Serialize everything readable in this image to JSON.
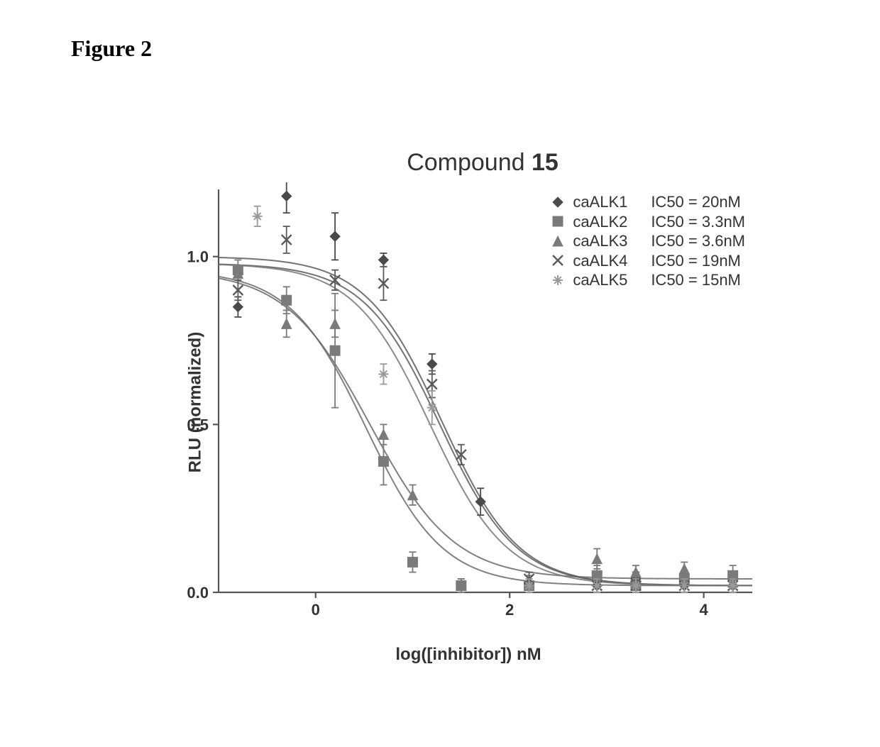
{
  "figure_label": "Figure 2",
  "chart": {
    "type": "scatter-with-curves",
    "title_prefix": "Compound ",
    "title_number": "15",
    "xlabel": "log([inhibitor]) nM",
    "ylabel": "RLU (normalized)",
    "xlim": [
      -1.0,
      4.5
    ],
    "ylim": [
      0.0,
      1.2
    ],
    "xticks": [
      0,
      2,
      4
    ],
    "yticks": [
      0.0,
      0.5,
      1.0
    ],
    "ytick_labels": [
      "0.0",
      "0.5",
      "1.0"
    ],
    "plot_bg": "#ffffff",
    "axis_color": "#555555",
    "axis_width": 2.2,
    "tick_length": 8,
    "title_fontsize": 34,
    "label_fontsize": 24,
    "tick_fontsize": 22,
    "legend_fontsize": 22,
    "marker_size": 7,
    "errorbar_width": 1.8,
    "curve_width": 2.0,
    "series": [
      {
        "name": "caALK1",
        "ic50_label": "IC50 = 20nM",
        "marker": "diamond",
        "color": "#4a4a4a",
        "curve_color": "#5a5a5a",
        "curve": {
          "top": 1.0,
          "bottom": 0.02,
          "log_ic50": 1.3,
          "hill": 1.1
        },
        "points": [
          {
            "x": -0.8,
            "y": 0.85,
            "err": 0.03
          },
          {
            "x": -0.3,
            "y": 1.18,
            "err": 0.05
          },
          {
            "x": 0.2,
            "y": 1.06,
            "err": 0.07
          },
          {
            "x": 0.7,
            "y": 0.99,
            "err": 0.02
          },
          {
            "x": 1.2,
            "y": 0.68,
            "err": 0.03
          },
          {
            "x": 1.7,
            "y": 0.27,
            "err": 0.04
          },
          {
            "x": 2.2,
            "y": 0.02,
            "err": 0.02
          },
          {
            "x": 2.9,
            "y": 0.02,
            "err": 0.02
          },
          {
            "x": 3.3,
            "y": 0.04,
            "err": 0.02
          },
          {
            "x": 3.8,
            "y": 0.02,
            "err": 0.02
          },
          {
            "x": 4.3,
            "y": 0.02,
            "err": 0.02
          }
        ]
      },
      {
        "name": "caALK2",
        "ic50_label": "IC50 = 3.3nM",
        "marker": "square",
        "color": "#7a7a7a",
        "curve_color": "#6a6a6a",
        "curve": {
          "top": 0.96,
          "bottom": 0.02,
          "log_ic50": 0.52,
          "hill": 1.1
        },
        "points": [
          {
            "x": -0.8,
            "y": 0.96,
            "err": 0.03
          },
          {
            "x": -0.3,
            "y": 0.87,
            "err": 0.04
          },
          {
            "x": 0.2,
            "y": 0.72,
            "err": 0.17
          },
          {
            "x": 0.7,
            "y": 0.39,
            "err": 0.07
          },
          {
            "x": 1.0,
            "y": 0.09,
            "err": 0.03
          },
          {
            "x": 1.5,
            "y": 0.02,
            "err": 0.02
          },
          {
            "x": 2.2,
            "y": 0.02,
            "err": 0.02
          },
          {
            "x": 2.9,
            "y": 0.05,
            "err": 0.03
          },
          {
            "x": 3.3,
            "y": 0.02,
            "err": 0.02
          },
          {
            "x": 3.8,
            "y": 0.04,
            "err": 0.02
          },
          {
            "x": 4.3,
            "y": 0.05,
            "err": 0.03
          }
        ]
      },
      {
        "name": "caALK3",
        "ic50_label": "IC50 = 3.6nM",
        "marker": "triangle",
        "color": "#7a7a7a",
        "curve_color": "#6a6a6a",
        "curve": {
          "top": 0.96,
          "bottom": 0.04,
          "log_ic50": 0.56,
          "hill": 1.0
        },
        "points": [
          {
            "x": -0.8,
            "y": 0.95,
            "err": 0.02
          },
          {
            "x": -0.3,
            "y": 0.8,
            "err": 0.04
          },
          {
            "x": 0.2,
            "y": 0.8,
            "err": 0.04
          },
          {
            "x": 0.7,
            "y": 0.47,
            "err": 0.03
          },
          {
            "x": 1.0,
            "y": 0.29,
            "err": 0.03
          },
          {
            "x": 1.5,
            "y": 0.02,
            "err": 0.02
          },
          {
            "x": 2.2,
            "y": 0.03,
            "err": 0.02
          },
          {
            "x": 2.9,
            "y": 0.1,
            "err": 0.03
          },
          {
            "x": 3.3,
            "y": 0.06,
            "err": 0.02
          },
          {
            "x": 3.8,
            "y": 0.07,
            "err": 0.02
          },
          {
            "x": 4.3,
            "y": 0.03,
            "err": 0.02
          }
        ]
      },
      {
        "name": "caALK4",
        "ic50_label": "IC50 = 19nM",
        "marker": "x",
        "color": "#5a5a5a",
        "curve_color": "#5a5a5a",
        "curve": {
          "top": 0.98,
          "bottom": 0.02,
          "log_ic50": 1.28,
          "hill": 1.1
        },
        "points": [
          {
            "x": -0.8,
            "y": 0.9,
            "err": 0.03
          },
          {
            "x": -0.3,
            "y": 1.05,
            "err": 0.04
          },
          {
            "x": 0.2,
            "y": 0.93,
            "err": 0.03
          },
          {
            "x": 0.7,
            "y": 0.92,
            "err": 0.05
          },
          {
            "x": 1.2,
            "y": 0.62,
            "err": 0.04
          },
          {
            "x": 1.5,
            "y": 0.41,
            "err": 0.03
          },
          {
            "x": 2.2,
            "y": 0.04,
            "err": 0.02
          },
          {
            "x": 2.9,
            "y": 0.02,
            "err": 0.02
          },
          {
            "x": 3.3,
            "y": 0.02,
            "err": 0.02
          },
          {
            "x": 3.8,
            "y": 0.02,
            "err": 0.02
          },
          {
            "x": 4.3,
            "y": 0.02,
            "err": 0.02
          }
        ]
      },
      {
        "name": "caALK5",
        "ic50_label": "IC50 = 15nM",
        "marker": "asterisk",
        "color": "#9a9a9a",
        "curve_color": "#777777",
        "curve": {
          "top": 0.98,
          "bottom": 0.02,
          "log_ic50": 1.18,
          "hill": 1.1
        },
        "points": [
          {
            "x": -0.6,
            "y": 1.12,
            "err": 0.03
          },
          {
            "x": 0.7,
            "y": 0.65,
            "err": 0.03
          },
          {
            "x": 1.2,
            "y": 0.55,
            "err": 0.05
          },
          {
            "x": 2.2,
            "y": 0.02,
            "err": 0.02
          },
          {
            "x": 2.9,
            "y": 0.02,
            "err": 0.02
          },
          {
            "x": 3.3,
            "y": 0.02,
            "err": 0.02
          },
          {
            "x": 3.8,
            "y": 0.02,
            "err": 0.02
          },
          {
            "x": 4.3,
            "y": 0.02,
            "err": 0.02
          }
        ]
      }
    ]
  }
}
